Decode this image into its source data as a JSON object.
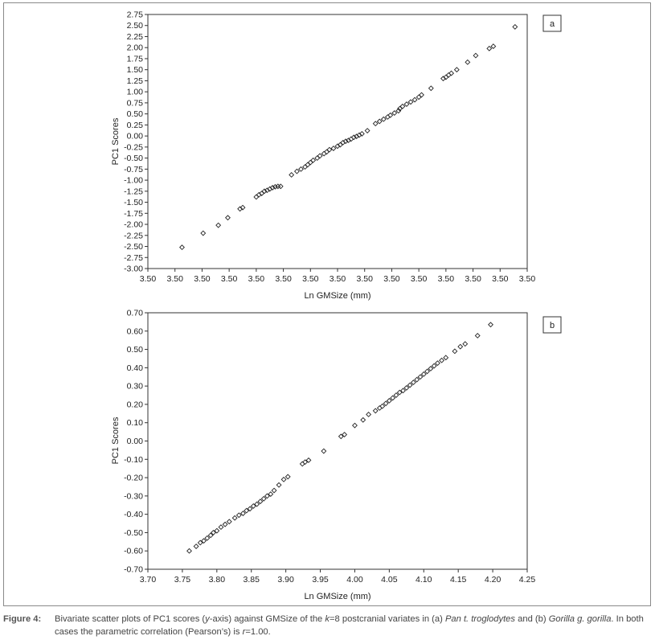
{
  "chart_data": [
    {
      "type": "scatter",
      "panel_label": "a",
      "xlabel": "Ln GMSize (mm)",
      "ylabel": "PC1 Scores",
      "x_tick_labels": [
        "3.50",
        "3.50",
        "3.50",
        "3.50",
        "3.50",
        "3.50",
        "3.50",
        "3.50",
        "3.50",
        "3.50",
        "3.50",
        "3.50",
        "3.50",
        "3.50",
        "3.50"
      ],
      "xlim": [
        0,
        14
      ],
      "yticks": [
        "2.75",
        "2.50",
        "2.25",
        "2.00",
        "1.75",
        "1.50",
        "1.25",
        "1.00",
        "0.75",
        "0.50",
        "0.25",
        "0.00",
        "-0.25",
        "-0.50",
        "-0.75",
        "-1.00",
        "-1.25",
        "-1.50",
        "-1.75",
        "-2.00",
        "-2.25",
        "-2.50",
        "-2.75",
        "-3.00"
      ],
      "ylim": [
        -3.0,
        2.75
      ],
      "grid": false,
      "points": [
        [
          1.26,
          -2.52
        ],
        [
          2.04,
          -2.2
        ],
        [
          2.6,
          -2.02
        ],
        [
          2.95,
          -1.85
        ],
        [
          3.4,
          -1.65
        ],
        [
          3.5,
          -1.62
        ],
        [
          4.0,
          -1.38
        ],
        [
          4.1,
          -1.33
        ],
        [
          4.2,
          -1.3
        ],
        [
          4.3,
          -1.25
        ],
        [
          4.4,
          -1.23
        ],
        [
          4.5,
          -1.2
        ],
        [
          4.6,
          -1.17
        ],
        [
          4.7,
          -1.15
        ],
        [
          4.8,
          -1.14
        ],
        [
          4.9,
          -1.14
        ],
        [
          5.3,
          -0.88
        ],
        [
          5.5,
          -0.8
        ],
        [
          5.65,
          -0.75
        ],
        [
          5.8,
          -0.7
        ],
        [
          5.9,
          -0.65
        ],
        [
          6.0,
          -0.6
        ],
        [
          6.1,
          -0.55
        ],
        [
          6.25,
          -0.5
        ],
        [
          6.35,
          -0.45
        ],
        [
          6.5,
          -0.4
        ],
        [
          6.6,
          -0.36
        ],
        [
          6.7,
          -0.31
        ],
        [
          6.85,
          -0.28
        ],
        [
          7.0,
          -0.23
        ],
        [
          7.1,
          -0.2
        ],
        [
          7.2,
          -0.15
        ],
        [
          7.3,
          -0.12
        ],
        [
          7.4,
          -0.1
        ],
        [
          7.5,
          -0.07
        ],
        [
          7.6,
          -0.03
        ],
        [
          7.7,
          -0.01
        ],
        [
          7.8,
          0.02
        ],
        [
          7.9,
          0.05
        ],
        [
          8.1,
          0.12
        ],
        [
          8.4,
          0.28
        ],
        [
          8.55,
          0.33
        ],
        [
          8.7,
          0.38
        ],
        [
          8.85,
          0.43
        ],
        [
          8.95,
          0.47
        ],
        [
          9.1,
          0.52
        ],
        [
          9.25,
          0.57
        ],
        [
          9.3,
          0.62
        ],
        [
          9.4,
          0.67
        ],
        [
          9.55,
          0.72
        ],
        [
          9.7,
          0.77
        ],
        [
          9.85,
          0.82
        ],
        [
          10.0,
          0.88
        ],
        [
          10.1,
          0.93
        ],
        [
          10.45,
          1.08
        ],
        [
          10.9,
          1.3
        ],
        [
          11.0,
          1.33
        ],
        [
          11.1,
          1.38
        ],
        [
          11.2,
          1.42
        ],
        [
          11.4,
          1.5
        ],
        [
          11.8,
          1.67
        ],
        [
          12.1,
          1.82
        ],
        [
          12.6,
          1.98
        ],
        [
          12.75,
          2.03
        ],
        [
          13.55,
          2.47
        ]
      ]
    },
    {
      "type": "scatter",
      "panel_label": "b",
      "xlabel": "Ln GMSize (mm)",
      "ylabel": "PC1 Scores",
      "xticks": [
        "3.70",
        "3.75",
        "3.80",
        "3.85",
        "3.90",
        "3.95",
        "4.00",
        "4.05",
        "4.10",
        "4.15",
        "4.20",
        "4.25"
      ],
      "xlim": [
        3.7,
        4.25
      ],
      "yticks": [
        "0.70",
        "0.60",
        "0.50",
        "0.40",
        "0.30",
        "0.20",
        "0.10",
        "0.00",
        "-0.10",
        "-0.20",
        "-0.30",
        "-0.40",
        "-0.50",
        "-0.60",
        "-0.70"
      ],
      "ylim": [
        -0.7,
        0.7
      ],
      "grid": false,
      "points": [
        [
          3.76,
          -0.6
        ],
        [
          3.77,
          -0.575
        ],
        [
          3.776,
          -0.555
        ],
        [
          3.781,
          -0.545
        ],
        [
          3.786,
          -0.53
        ],
        [
          3.791,
          -0.515
        ],
        [
          3.795,
          -0.5
        ],
        [
          3.8,
          -0.49
        ],
        [
          3.806,
          -0.47
        ],
        [
          3.812,
          -0.455
        ],
        [
          3.818,
          -0.44
        ],
        [
          3.826,
          -0.42
        ],
        [
          3.832,
          -0.405
        ],
        [
          3.838,
          -0.395
        ],
        [
          3.843,
          -0.38
        ],
        [
          3.848,
          -0.37
        ],
        [
          3.853,
          -0.355
        ],
        [
          3.858,
          -0.345
        ],
        [
          3.863,
          -0.33
        ],
        [
          3.868,
          -0.315
        ],
        [
          3.873,
          -0.3
        ],
        [
          3.878,
          -0.29
        ],
        [
          3.883,
          -0.27
        ],
        [
          3.89,
          -0.24
        ],
        [
          3.897,
          -0.21
        ],
        [
          3.903,
          -0.195
        ],
        [
          3.924,
          -0.125
        ],
        [
          3.928,
          -0.115
        ],
        [
          3.933,
          -0.105
        ],
        [
          3.955,
          -0.055
        ],
        [
          3.98,
          0.025
        ],
        [
          3.985,
          0.035
        ],
        [
          4.0,
          0.085
        ],
        [
          4.012,
          0.115
        ],
        [
          4.02,
          0.145
        ],
        [
          4.03,
          0.165
        ],
        [
          4.036,
          0.18
        ],
        [
          4.04,
          0.19
        ],
        [
          4.045,
          0.205
        ],
        [
          4.05,
          0.22
        ],
        [
          4.055,
          0.235
        ],
        [
          4.06,
          0.25
        ],
        [
          4.065,
          0.265
        ],
        [
          4.07,
          0.275
        ],
        [
          4.075,
          0.29
        ],
        [
          4.08,
          0.305
        ],
        [
          4.085,
          0.32
        ],
        [
          4.09,
          0.335
        ],
        [
          4.095,
          0.35
        ],
        [
          4.1,
          0.365
        ],
        [
          4.105,
          0.38
        ],
        [
          4.11,
          0.395
        ],
        [
          4.115,
          0.41
        ],
        [
          4.12,
          0.425
        ],
        [
          4.126,
          0.44
        ],
        [
          4.132,
          0.455
        ],
        [
          4.145,
          0.49
        ],
        [
          4.153,
          0.515
        ],
        [
          4.16,
          0.53
        ],
        [
          4.178,
          0.575
        ],
        [
          4.197,
          0.635
        ]
      ]
    }
  ],
  "caption": {
    "label": "Figure 4:",
    "text": "Bivariate scatter plots of PC1 scores (y-axis) against GMSize of the k=8 postcranial variates in (a) Pan t. troglodytes and (b) Gorilla g. gorilla. In both cases the parametric correlation (Pearson’s) is r=1.00."
  }
}
